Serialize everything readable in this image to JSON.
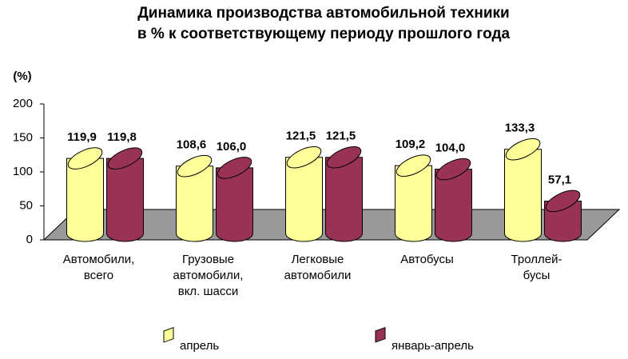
{
  "chart_data": {
    "type": "bar3d",
    "title": "Динамика производства автомобильной техники",
    "subtitle": "в % к соответствующему периоду прошлого года",
    "y_label": "(%)",
    "categories": [
      "Автомобили,\nвсего",
      "Грузовые\nавтомобили,\nвкл. шасси",
      "Легковые\nавтомобили",
      "Автобусы",
      "Троллей-\nбусы"
    ],
    "series": [
      {
        "name": "апрель",
        "color": "#ffff99",
        "values": [
          119.9,
          108.6,
          121.5,
          109.2,
          133.3
        ],
        "value_labels": [
          "119,9",
          "108,6",
          "121,5",
          "109,2",
          "133,3"
        ]
      },
      {
        "name": "январь-апрель",
        "color": "#993355",
        "values": [
          119.8,
          106.0,
          121.5,
          104.0,
          57.1
        ],
        "value_labels": [
          "119,8",
          "106,0",
          "121,5",
          "104,0",
          "57,1"
        ]
      }
    ],
    "ylim": [
      0,
      200
    ],
    "yticks": [
      0,
      50,
      100,
      150,
      200
    ]
  }
}
